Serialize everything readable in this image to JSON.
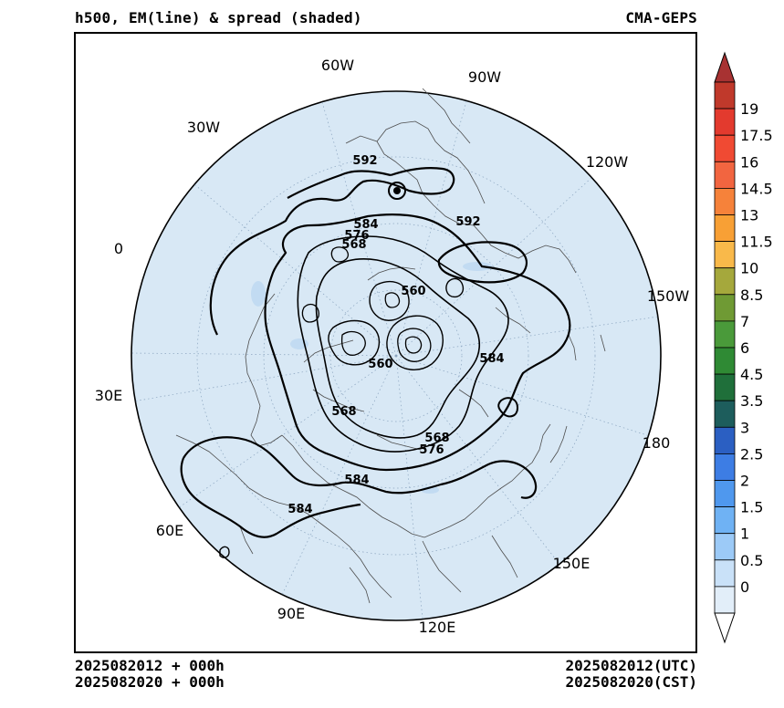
{
  "header": {
    "title_left": "h500, EM(line) & spread (shaded)",
    "title_right": "CMA-GEPS"
  },
  "footer": {
    "left_line1": "2025082012 + 000h",
    "left_line2": "2025082020 + 000h",
    "right_line1": "2025082012(UTC)",
    "right_line2": "2025082020(CST)"
  },
  "map": {
    "projection": "north-polar-stereographic",
    "disk_fill": "#d8e8f5",
    "longitude_labels": [
      "60W",
      "90W",
      "30W",
      "120W",
      "0",
      "150W",
      "30E",
      "180",
      "60E",
      "150E",
      "90E",
      "120E"
    ],
    "contour_labels": [
      "592",
      "592",
      "584",
      "576",
      "568",
      "560",
      "560",
      "584",
      "568",
      "568",
      "576",
      "584",
      "584"
    ]
  },
  "colorbar": {
    "title": "",
    "labels": [
      "19",
      "17.5",
      "16",
      "14.5",
      "13",
      "11.5",
      "10",
      "8.5",
      "7",
      "6",
      "4.5",
      "3.5",
      "3",
      "2.5",
      "2",
      "1.5",
      "1",
      "0.5",
      "0"
    ],
    "colors": [
      "#c0392b",
      "#e33a2e",
      "#f04a33",
      "#f26540",
      "#f6823a",
      "#f8a035",
      "#f9b94a",
      "#a5a83c",
      "#6f9a34",
      "#4a9a3a",
      "#2f8a34",
      "#1f6f3a",
      "#1d5d5c",
      "#2b5fc2",
      "#3d7de4",
      "#4f98ee",
      "#6fb2f4",
      "#9ccaf7",
      "#c9e1f8",
      "#e2eef9"
    ],
    "top_arrow_color": "#a83232",
    "bottom_arrow_color": "#ffffff"
  }
}
